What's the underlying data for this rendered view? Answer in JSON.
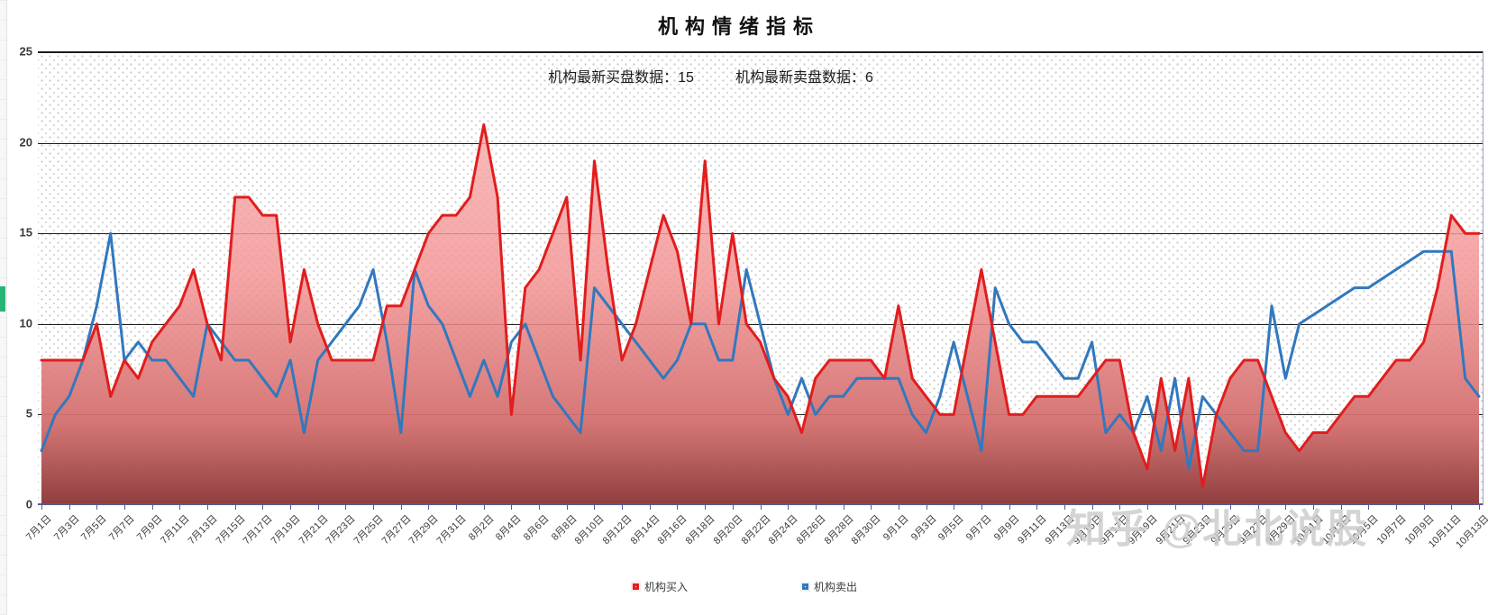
{
  "page": {
    "title": "机构情绪指标"
  },
  "subtitle": {
    "buy_label": "机构最新买盘数据：",
    "buy_value": "15",
    "sell_label": "机构最新卖盘数据：",
    "sell_value": "6"
  },
  "watermark": "知乎 @北北说股",
  "chart_data": {
    "type": "area",
    "title": "机构情绪指标",
    "xlabel": "",
    "ylabel": "",
    "ylim": [
      0,
      25
    ],
    "yticks": [
      0,
      5,
      10,
      15,
      20,
      25
    ],
    "grid": "horizontal",
    "legend_position": "bottom",
    "x_label_every": 2,
    "background_pattern": "light-gray-dots",
    "categories": [
      "7月1日",
      "7月2日",
      "7月3日",
      "7月4日",
      "7月5日",
      "7月6日",
      "7月7日",
      "7月8日",
      "7月9日",
      "7月10日",
      "7月11日",
      "7月12日",
      "7月13日",
      "7月14日",
      "7月15日",
      "7月16日",
      "7月17日",
      "7月18日",
      "7月19日",
      "7月20日",
      "7月21日",
      "7月22日",
      "7月23日",
      "7月24日",
      "7月25日",
      "7月26日",
      "7月27日",
      "7月28日",
      "7月29日",
      "7月30日",
      "7月31日",
      "8月1日",
      "8月2日",
      "8月3日",
      "8月4日",
      "8月5日",
      "8月6日",
      "8月7日",
      "8月8日",
      "8月9日",
      "8月10日",
      "8月11日",
      "8月12日",
      "8月13日",
      "8月14日",
      "8月15日",
      "8月16日",
      "8月17日",
      "8月18日",
      "8月19日",
      "8月20日",
      "8月21日",
      "8月22日",
      "8月23日",
      "8月24日",
      "8月25日",
      "8月26日",
      "8月27日",
      "8月28日",
      "8月29日",
      "8月30日",
      "8月31日",
      "9月1日",
      "9月2日",
      "9月3日",
      "9月4日",
      "9月5日",
      "9月6日",
      "9月7日",
      "9月8日",
      "9月9日",
      "9月10日",
      "9月11日",
      "9月12日",
      "9月13日",
      "9月14日",
      "9月15日",
      "9月16日",
      "9月17日",
      "9月18日",
      "9月19日",
      "9月20日",
      "9月21日",
      "9月22日",
      "9月23日",
      "9月24日",
      "9月25日",
      "9月26日",
      "9月27日",
      "9月28日",
      "9月29日",
      "9月30日",
      "10月1日",
      "10月2日",
      "10月3日",
      "10月4日",
      "10月5日",
      "10月6日",
      "10月7日",
      "10月8日",
      "10月9日",
      "10月10日",
      "10月11日",
      "10月12日",
      "10月13日"
    ],
    "series": [
      {
        "name": "机构买入",
        "type": "area",
        "line_color": "#e11d1d",
        "area_gradient": [
          "rgba(249,183,183,0.80)",
          "rgba(243,148,148,0.85)",
          "rgba(210,110,110,0.95)",
          "#8f3e3e"
        ],
        "values": [
          8,
          8,
          8,
          8,
          10,
          6,
          8,
          7,
          9,
          10,
          11,
          13,
          10,
          8,
          17,
          17,
          16,
          16,
          9,
          13,
          10,
          8,
          8,
          8,
          8,
          11,
          11,
          13,
          15,
          16,
          16,
          17,
          21,
          17,
          5,
          12,
          13,
          15,
          17,
          8,
          19,
          13,
          8,
          10,
          13,
          16,
          14,
          10,
          19,
          10,
          15,
          10,
          9,
          7,
          6,
          4,
          7,
          8,
          8,
          8,
          8,
          7,
          11,
          7,
          6,
          5,
          5,
          9,
          13,
          9,
          5,
          5,
          6,
          6,
          6,
          6,
          7,
          8,
          8,
          4,
          2,
          7,
          3,
          7,
          1,
          5,
          7,
          8,
          8,
          6,
          4,
          3,
          4,
          4,
          5,
          6,
          6,
          7,
          8,
          8,
          9,
          12,
          16,
          15,
          15
        ]
      },
      {
        "name": "机构卖出",
        "type": "line",
        "line_color": "#3178be",
        "values": [
          3,
          5,
          6,
          8,
          11,
          15,
          8,
          9,
          8,
          8,
          7,
          6,
          10,
          9,
          8,
          8,
          7,
          6,
          8,
          4,
          8,
          9,
          10,
          11,
          13,
          9,
          4,
          13,
          11,
          10,
          8,
          6,
          8,
          6,
          9,
          10,
          8,
          6,
          5,
          4,
          12,
          11,
          10,
          9,
          8,
          7,
          8,
          10,
          10,
          8,
          8,
          13,
          10,
          7,
          5,
          7,
          5,
          6,
          6,
          7,
          7,
          7,
          7,
          5,
          4,
          6,
          9,
          6,
          3,
          12,
          10,
          9,
          9,
          8,
          7,
          7,
          9,
          4,
          5,
          4,
          6,
          3,
          7,
          2,
          6,
          5,
          4,
          3,
          3,
          11,
          7,
          10,
          10.5,
          11,
          11.5,
          12,
          12,
          12.5,
          13,
          13.5,
          14,
          14,
          14,
          7,
          6
        ]
      }
    ],
    "colors": {
      "gridline": "#1c1c1c",
      "axis": "#565b8f",
      "dot_pattern": "#c9c9c9",
      "buy": "#e11d1d",
      "sell": "#3178be"
    }
  }
}
